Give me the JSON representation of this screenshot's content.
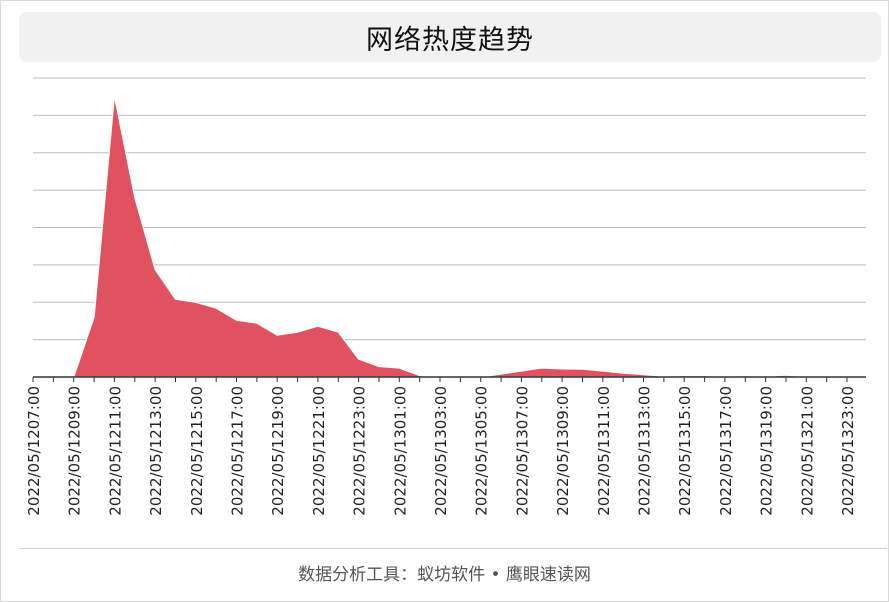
{
  "header": {
    "title": "网络热度趋势"
  },
  "footer": {
    "text": "数据分析工具：蚁坊软件 • 鹰眼速读网"
  },
  "colors": {
    "area": "#e05260",
    "grid": "#bdbdbd",
    "axis": "#333333"
  },
  "chart_data": {
    "type": "area",
    "title": "网络热度趋势",
    "xlabel": "",
    "ylabel": "",
    "grid": true,
    "y_axis_labels_shown": false,
    "ylim": [
      0,
      100
    ],
    "x": [
      "2022/05/12 07:00",
      "2022/05/12 08:00",
      "2022/05/12 09:00",
      "2022/05/12 10:00",
      "2022/05/12 11:00",
      "2022/05/12 12:00",
      "2022/05/12 13:00",
      "2022/05/12 14:00",
      "2022/05/12 15:00",
      "2022/05/12 16:00",
      "2022/05/12 17:00",
      "2022/05/12 18:00",
      "2022/05/12 19:00",
      "2022/05/12 20:00",
      "2022/05/12 21:00",
      "2022/05/12 22:00",
      "2022/05/12 23:00",
      "2022/05/13 00:00",
      "2022/05/13 01:00",
      "2022/05/13 02:00",
      "2022/05/13 03:00",
      "2022/05/13 04:00",
      "2022/05/13 05:00",
      "2022/05/13 06:00",
      "2022/05/13 07:00",
      "2022/05/13 08:00",
      "2022/05/13 09:00",
      "2022/05/13 10:00",
      "2022/05/13 11:00",
      "2022/05/13 12:00",
      "2022/05/13 13:00",
      "2022/05/13 14:00",
      "2022/05/13 15:00",
      "2022/05/13 16:00",
      "2022/05/13 17:00",
      "2022/05/13 18:00",
      "2022/05/13 19:00",
      "2022/05/13 20:00",
      "2022/05/13 21:00",
      "2022/05/13 22:00",
      "2022/05/13 23:00"
    ],
    "x_tick_labels": [
      "2022/05/1207:00",
      "2022/05/1209:00",
      "2022/05/1211:00",
      "2022/05/1213:00",
      "2022/05/1215:00",
      "2022/05/1217:00",
      "2022/05/1219:00",
      "2022/05/1221:00",
      "2022/05/1223:00",
      "2022/05/1301:00",
      "2022/05/1303:00",
      "2022/05/1305:00",
      "2022/05/1307:00",
      "2022/05/1309:00",
      "2022/05/1311:00",
      "2022/05/1313:00",
      "2022/05/1315:00",
      "2022/05/1317:00",
      "2022/05/1319:00",
      "2022/05/1321:00",
      "2022/05/1323:00"
    ],
    "series": [
      {
        "values": [
          0,
          0,
          0,
          20,
          94,
          60,
          36,
          26,
          25,
          23,
          19,
          18,
          14,
          15,
          17,
          15,
          6,
          3.5,
          3,
          0.5,
          0,
          0,
          0,
          1,
          2,
          3,
          2.7,
          2.6,
          2,
          1.3,
          0.8,
          0.3,
          0.5,
          0.5,
          0.3,
          0.5,
          0.3,
          0.6,
          0.2,
          0.2,
          0.1
        ]
      }
    ]
  }
}
